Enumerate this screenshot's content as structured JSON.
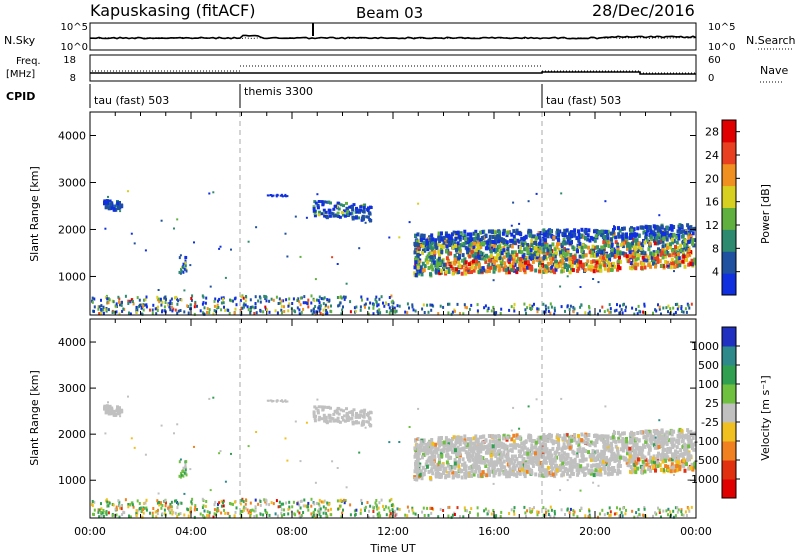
{
  "header": {
    "station": "Kapuskasing (fitACF)",
    "beam": "Beam 03",
    "date": "28/Dec/2016"
  },
  "strip_labels": {
    "nsky": "N.Sky",
    "nsearch": "N.Search",
    "freq_line1": "Freq.",
    "freq_line2": "[MHz]",
    "nave": "Nave",
    "cpid": "CPID",
    "nsky_ticks": [
      "10^5",
      "10^0"
    ],
    "nsearch_ticks": [
      "10^5",
      "10^0"
    ],
    "freq_ticks": [
      "18",
      "8"
    ],
    "nave_ticks": [
      "60",
      "0"
    ]
  },
  "cpid_segments": [
    {
      "label": "tau (fast) 503",
      "start": 0,
      "end": 6
    },
    {
      "label": "themis 3300",
      "start": 6,
      "end": 18
    },
    {
      "label": "tau (fast) 503",
      "start": 18,
      "end": 24
    }
  ],
  "chart_data": [
    {
      "type": "heatmap",
      "name": "power",
      "ylabel": "Slant Range [km]",
      "xlim": [
        0,
        24
      ],
      "ylim": [
        180,
        4500
      ],
      "yticks": [
        "1000",
        "2000",
        "3000",
        "4000"
      ],
      "colorbar_label": "Power [dB]",
      "colorbar_ticks": [
        "4",
        "8",
        "12",
        "16",
        "20",
        "24",
        "28"
      ],
      "colorbar_range": [
        0,
        30
      ],
      "colors": [
        "#1030e0",
        "#2050a0",
        "#2e8a6e",
        "#60b040",
        "#d8d020",
        "#f09020",
        "#e84020",
        "#e00000"
      ],
      "dashed_lines_hours": [
        6,
        18
      ]
    },
    {
      "type": "heatmap",
      "name": "velocity",
      "xlabel": "Time UT",
      "ylabel": "Slant Range [km]",
      "xlim": [
        0,
        24
      ],
      "ylim": [
        180,
        4500
      ],
      "xticks": [
        "00:00",
        "04:00",
        "08:00",
        "12:00",
        "16:00",
        "20:00",
        "00:00"
      ],
      "yticks": [
        "1000",
        "2000",
        "3000",
        "4000"
      ],
      "colorbar_label": "Velocity [m s⁻¹]",
      "colorbar_ticks": [
        "1000",
        "500",
        "100",
        "25",
        "-25",
        "-100",
        "-500",
        "-1000"
      ],
      "colors": [
        "#2030c0",
        "#2e8a8a",
        "#30a050",
        "#70c040",
        "#c0c0c0",
        "#f0c020",
        "#f08020",
        "#e03010",
        "#e00000"
      ],
      "dashed_lines_hours": [
        6,
        18
      ]
    }
  ]
}
